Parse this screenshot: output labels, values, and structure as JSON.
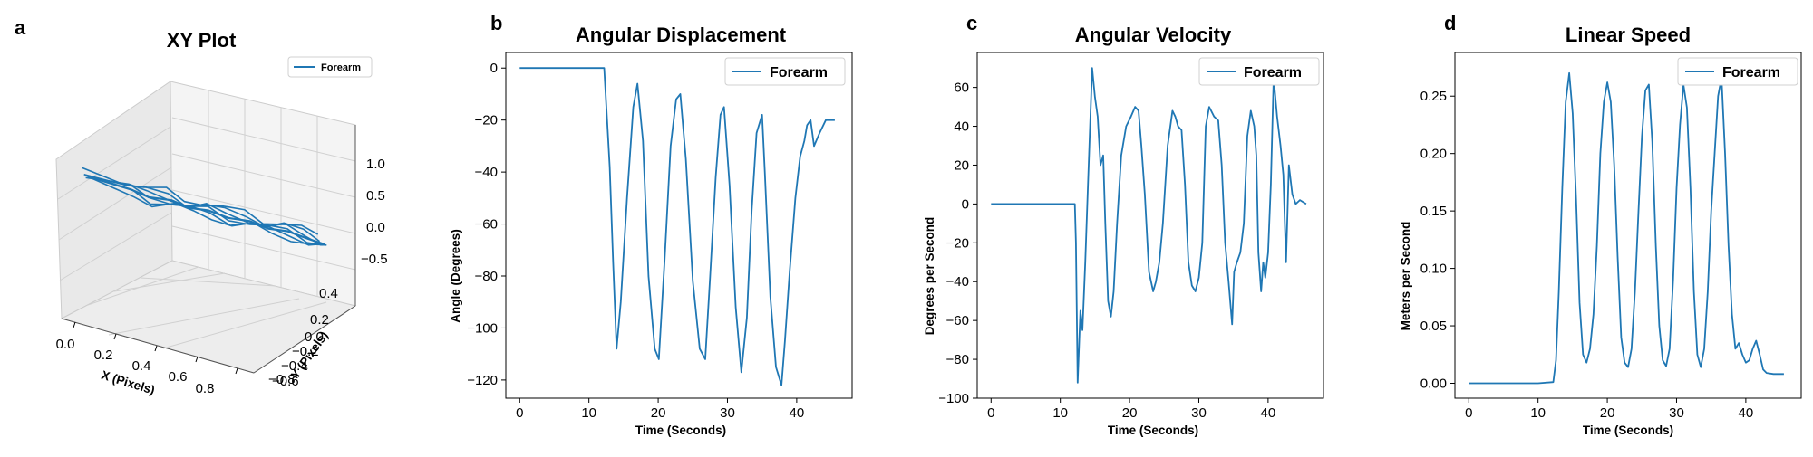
{
  "colors": {
    "series": "#1f77b4",
    "axis": "#000000",
    "pane": "#f2f2f2",
    "grid": "#cfcfcf"
  },
  "chart_data": [
    {
      "panel_letter": "a",
      "type": "line",
      "title": "XY Plot",
      "xlabel": "X (Pixels)",
      "ylabel": "Y (Pixels)",
      "xticks": [
        "0.0",
        "0.2",
        "0.4",
        "0.6",
        "0.8"
      ],
      "yticks": [
        "0.4",
        "0.2",
        "0.0",
        "−0.2",
        "−0.4",
        "−0.6",
        "−0.8"
      ],
      "zticks": [
        "1.0",
        "0.5",
        "0.0",
        "−0.5"
      ],
      "legend": "top-right",
      "grid": true,
      "series": [
        {
          "name": "Forearm",
          "x": [
            -0.1,
            0.12,
            0.2,
            0.3,
            0.38,
            0.46,
            0.55,
            0.64,
            0.72,
            0.8,
            0.88,
            0.95
          ],
          "y": [
            0.3,
            0.22,
            0.15,
            0.05,
            -0.02,
            -0.1,
            -0.18,
            -0.28,
            -0.36,
            -0.45,
            -0.55,
            -0.62
          ],
          "z": [
            0.0,
            0.05,
            -0.05,
            0.02,
            -0.08,
            -0.02,
            -0.1,
            -0.05,
            -0.15,
            -0.1,
            -0.2,
            -0.25
          ]
        }
      ]
    },
    {
      "panel_letter": "b",
      "type": "line",
      "title": "Angular Displacement",
      "xlabel": "Time (Seconds)",
      "ylabel": "Angle (Degrees)",
      "xlim": [
        -2,
        48
      ],
      "ylim": [
        -127,
        6
      ],
      "xticks": [
        0,
        10,
        20,
        30,
        40
      ],
      "yticks": [
        0,
        -20,
        -40,
        -60,
        -80,
        -100,
        -120
      ],
      "legend": "top-right",
      "grid": false,
      "series": [
        {
          "name": "Forearm",
          "x": [
            0,
            12.2,
            13.0,
            13.5,
            14.0,
            14.6,
            15.5,
            16.4,
            17.0,
            17.8,
            18.6,
            19.5,
            20.1,
            20.9,
            21.8,
            22.6,
            23.2,
            24.0,
            25.0,
            26.0,
            26.8,
            27.5,
            28.3,
            29.0,
            29.5,
            30.3,
            31.2,
            32.0,
            32.8,
            33.5,
            34.2,
            35.0,
            35.4,
            36.2,
            37.0,
            37.8,
            38.3,
            39.0,
            39.8,
            40.5,
            41.1,
            41.5,
            42.0,
            42.5,
            43.3,
            44.2,
            45.5
          ],
          "y": [
            0,
            0,
            -38,
            -75,
            -108,
            -90,
            -50,
            -15,
            -6,
            -28,
            -80,
            -108,
            -112,
            -75,
            -30,
            -12,
            -10,
            -35,
            -82,
            -108,
            -112,
            -80,
            -42,
            -18,
            -15,
            -45,
            -92,
            -117,
            -96,
            -55,
            -25,
            -18,
            -40,
            -88,
            -115,
            -122,
            -105,
            -78,
            -50,
            -34,
            -28,
            -22,
            -20,
            -30,
            -25,
            -20,
            -20
          ]
        }
      ]
    },
    {
      "panel_letter": "c",
      "type": "line",
      "title": "Angular Velocity",
      "xlabel": "Time (Seconds)",
      "ylabel": "Degrees per Second",
      "xlim": [
        -2,
        48
      ],
      "ylim": [
        -100,
        78
      ],
      "xticks": [
        0,
        10,
        20,
        30,
        40
      ],
      "yticks": [
        60,
        40,
        20,
        0,
        -20,
        -40,
        -60,
        -80,
        -100
      ],
      "legend": "top-right",
      "grid": false,
      "series": [
        {
          "name": "Forearm",
          "x": [
            0,
            2,
            4,
            6,
            8,
            10,
            12.1,
            12.25,
            12.5,
            12.9,
            13.2,
            13.6,
            14.0,
            14.3,
            14.6,
            15.0,
            15.4,
            15.8,
            16.2,
            16.5,
            16.9,
            17.3,
            17.7,
            18.2,
            18.8,
            19.5,
            20.2,
            20.8,
            21.3,
            21.7,
            22.2,
            22.8,
            23.4,
            23.8,
            24.3,
            24.8,
            25.5,
            26.2,
            26.6,
            27.0,
            27.5,
            28.0,
            28.5,
            29.0,
            29.5,
            30.0,
            30.5,
            31.0,
            31.5,
            32.2,
            32.8,
            33.3,
            33.8,
            34.3,
            34.8,
            35.1,
            35.5,
            36.0,
            36.5,
            37.0,
            37.5,
            38.0,
            38.3,
            38.6,
            39.0,
            39.3,
            39.6,
            40.0,
            40.4,
            40.8,
            41.3,
            41.8,
            42.2,
            42.6,
            43.0,
            43.5,
            44.0,
            44.6,
            45.5
          ],
          "y": [
            0,
            0,
            0,
            0,
            0,
            0,
            0,
            -20,
            -92,
            -55,
            -65,
            -30,
            10,
            40,
            70,
            55,
            45,
            20,
            25,
            -10,
            -50,
            -58,
            -45,
            -10,
            25,
            40,
            45,
            50,
            48,
            30,
            5,
            -35,
            -45,
            -40,
            -30,
            -10,
            30,
            48,
            45,
            40,
            38,
            10,
            -30,
            -42,
            -45,
            -38,
            -20,
            40,
            50,
            45,
            43,
            20,
            -20,
            -40,
            -62,
            -35,
            -30,
            -25,
            -10,
            35,
            48,
            40,
            25,
            -25,
            -45,
            -30,
            -38,
            -25,
            10,
            65,
            45,
            30,
            15,
            -30,
            20,
            5,
            0,
            2,
            0
          ]
        }
      ]
    },
    {
      "panel_letter": "d",
      "type": "line",
      "title": "Linear Speed",
      "xlabel": "Time (Seconds)",
      "ylabel": "Meters per Second",
      "xlim": [
        -2,
        48
      ],
      "ylim": [
        -0.013,
        0.288
      ],
      "xticks": [
        0,
        10,
        20,
        30,
        40
      ],
      "yticks": [
        0.25,
        0.2,
        0.15,
        0.1,
        0.05,
        0.0
      ],
      "legend": "top-right",
      "grid": false,
      "series": [
        {
          "name": "Forearm",
          "x": [
            0,
            5,
            10,
            12.2,
            12.6,
            13.0,
            13.5,
            14.0,
            14.5,
            15.0,
            15.5,
            16.0,
            16.5,
            17.0,
            17.5,
            18.0,
            18.5,
            19.0,
            19.5,
            20.0,
            20.5,
            21.0,
            21.5,
            22.0,
            22.5,
            23.0,
            23.5,
            24.0,
            24.5,
            25.0,
            25.5,
            26.0,
            26.5,
            27.0,
            27.5,
            28.0,
            28.5,
            29.0,
            29.5,
            30.0,
            30.5,
            31.0,
            31.5,
            32.0,
            32.5,
            33.0,
            33.5,
            34.0,
            34.5,
            35.0,
            35.5,
            36.0,
            36.5,
            37.0,
            37.5,
            38.0,
            38.5,
            39.0,
            39.5,
            40.0,
            40.5,
            41.0,
            41.5,
            42.0,
            42.5,
            43.0,
            44.0,
            45.5
          ],
          "y": [
            0.0,
            0.0,
            0.0,
            0.001,
            0.02,
            0.08,
            0.17,
            0.245,
            0.27,
            0.235,
            0.16,
            0.07,
            0.025,
            0.018,
            0.03,
            0.06,
            0.12,
            0.2,
            0.245,
            0.262,
            0.245,
            0.19,
            0.11,
            0.04,
            0.018,
            0.014,
            0.03,
            0.08,
            0.15,
            0.215,
            0.255,
            0.26,
            0.21,
            0.12,
            0.05,
            0.02,
            0.015,
            0.03,
            0.09,
            0.17,
            0.225,
            0.26,
            0.24,
            0.17,
            0.08,
            0.025,
            0.014,
            0.03,
            0.08,
            0.15,
            0.2,
            0.25,
            0.266,
            0.2,
            0.12,
            0.06,
            0.03,
            0.035,
            0.025,
            0.018,
            0.02,
            0.03,
            0.037,
            0.025,
            0.012,
            0.009,
            0.008,
            0.008
          ]
        }
      ]
    }
  ]
}
